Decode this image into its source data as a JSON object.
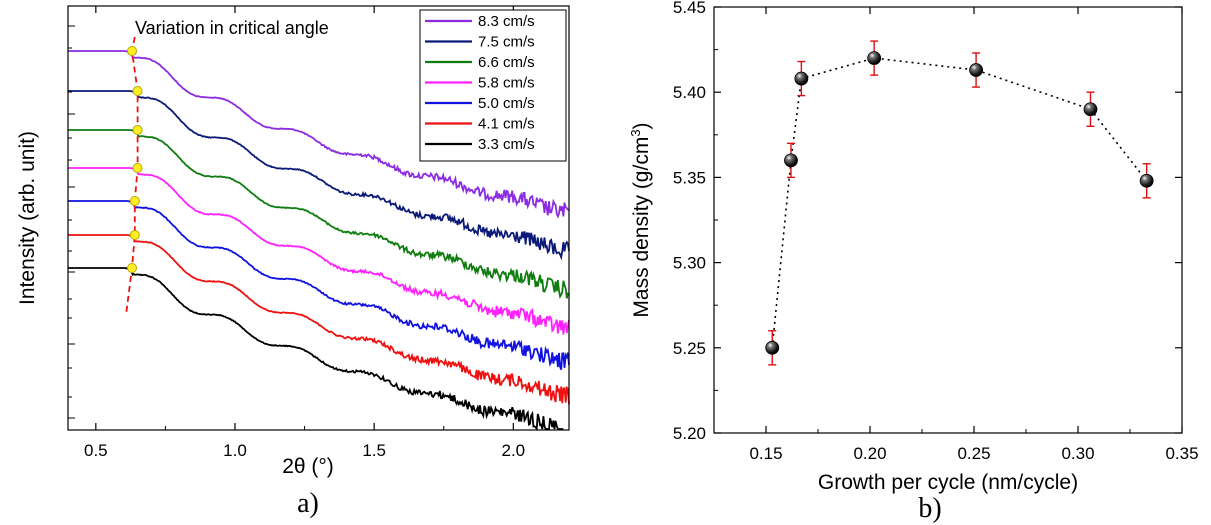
{
  "chart_data": [
    {
      "panel_label": "a)",
      "type": "line",
      "xlabel": "2θ (°)",
      "ylabel": "Intensity (arb. unit)",
      "xlim": [
        0.4,
        2.2
      ],
      "x_ticks": [
        "0.5",
        "1.0",
        "1.5",
        "2.0"
      ],
      "y_scale": "log (arbitrary, curves vertically offset)",
      "annotation": "Variation in critical angle",
      "legend_position": "top-right",
      "series": [
        {
          "name": "8.3 cm/s",
          "color": "#8b2be2",
          "critical_angle": 0.63
        },
        {
          "name": "7.5 cm/s",
          "color": "#0b1a78",
          "critical_angle": 0.65
        },
        {
          "name": "6.6 cm/s",
          "color": "#0f7c0f",
          "critical_angle": 0.65
        },
        {
          "name": "5.8 cm/s",
          "color": "#ff22ff",
          "critical_angle": 0.65
        },
        {
          "name": "5.0 cm/s",
          "color": "#1111e0",
          "critical_angle": 0.64
        },
        {
          "name": "4.1 cm/s",
          "color": "#ee1111",
          "critical_angle": 0.64
        },
        {
          "name": "3.3 cm/s",
          "color": "#000000",
          "critical_angle": 0.63
        }
      ],
      "curve_end_x": [
        2.2,
        2.2,
        2.2,
        2.2,
        2.2,
        2.2,
        2.18
      ],
      "guide_line_color": "#ee1111",
      "marker_color": "#ffee22"
    },
    {
      "panel_label": "b)",
      "type": "scatter",
      "xlabel": "Growth per cycle (nm/cycle)",
      "ylabel": "Mass density (g/cm3)",
      "xlim": [
        0.125,
        0.35
      ],
      "ylim": [
        5.2,
        5.45
      ],
      "x_ticks": [
        "0.15",
        "0.20",
        "0.25",
        "0.30",
        "0.35"
      ],
      "y_ticks": [
        "5.20",
        "5.25",
        "5.30",
        "5.35",
        "5.40",
        "5.45"
      ],
      "x": [
        0.153,
        0.162,
        0.167,
        0.202,
        0.251,
        0.306,
        0.333
      ],
      "y": [
        5.25,
        5.36,
        5.408,
        5.42,
        5.413,
        5.39,
        5.348
      ],
      "error": [
        0.01,
        0.01,
        0.01,
        0.01,
        0.01,
        0.01,
        0.01
      ],
      "marker_color": "#000000",
      "error_bar_color": "#dd1111",
      "line_style": "dotted"
    }
  ]
}
